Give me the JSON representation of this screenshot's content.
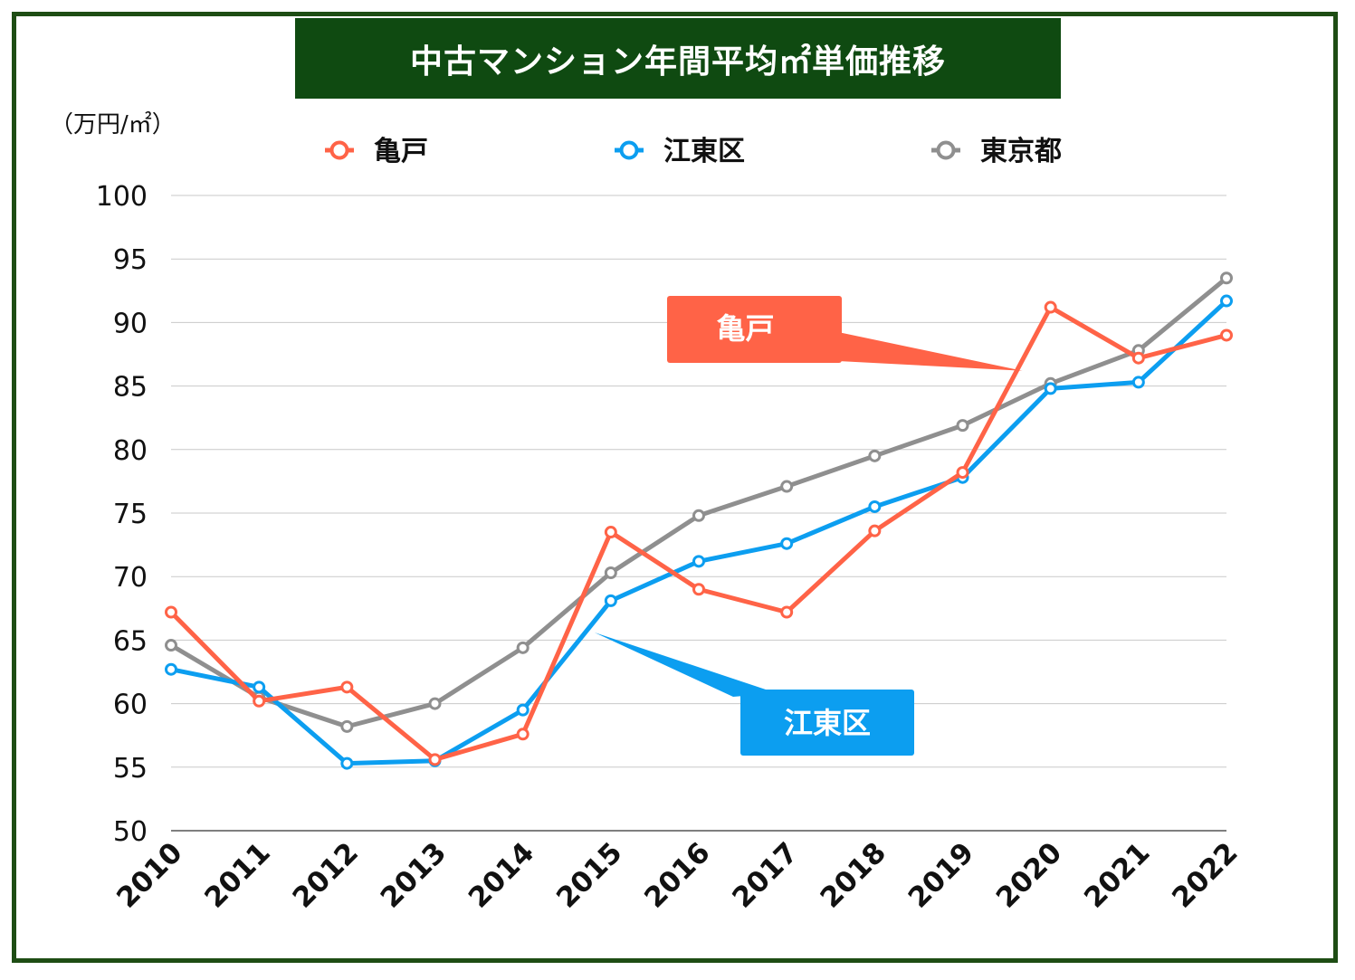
{
  "chart_data": {
    "type": "line",
    "title": "中古マンション年間平均㎡単価推移",
    "ylabel": "（万円/㎡）",
    "xlabel": "",
    "ylim": [
      50,
      100
    ],
    "yticks": [
      50,
      55,
      60,
      65,
      70,
      75,
      80,
      85,
      90,
      95,
      100
    ],
    "categories": [
      "2010",
      "2011",
      "2012",
      "2013",
      "2014",
      "2015",
      "2016",
      "2017",
      "2018",
      "2019",
      "2020",
      "2021",
      "2022"
    ],
    "series": [
      {
        "name": "亀戸",
        "color": "#ff6347",
        "values": [
          67.2,
          60.2,
          61.3,
          55.6,
          57.6,
          73.5,
          69.0,
          67.2,
          73.6,
          78.2,
          91.2,
          87.2,
          89.0
        ]
      },
      {
        "name": "江東区",
        "color": "#0c9ef0",
        "values": [
          62.7,
          61.3,
          55.3,
          55.5,
          59.5,
          68.1,
          71.2,
          72.6,
          75.5,
          77.8,
          84.8,
          85.3,
          91.7
        ]
      },
      {
        "name": "東京都",
        "color": "#8f8f8f",
        "values": [
          64.6,
          60.5,
          58.2,
          60.0,
          64.4,
          70.3,
          74.8,
          77.1,
          79.5,
          81.9,
          85.2,
          87.8,
          93.5
        ]
      }
    ],
    "annotations": [
      {
        "text": "亀戸",
        "series": "亀戸",
        "color": "#ff6347"
      },
      {
        "text": "江東区",
        "series": "江東区",
        "color": "#0c9ef0"
      }
    ],
    "grid": true,
    "legend": "top"
  }
}
